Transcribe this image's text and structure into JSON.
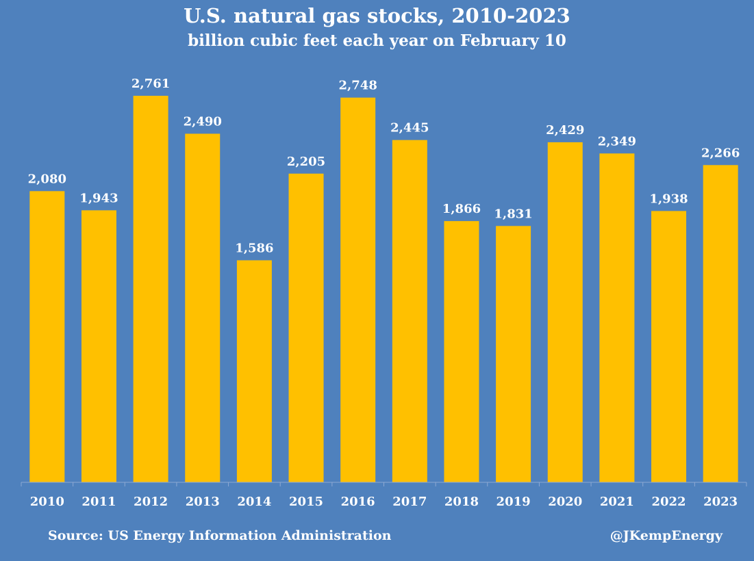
{
  "header": {
    "title": "U.S. natural gas stocks, 2010-2023",
    "subtitle": "billion cubic feet each year on February 10"
  },
  "footer": {
    "source": "Source: US Energy Information Administration",
    "handle": "@JKempEnergy"
  },
  "colors": {
    "background": "#4f81bd",
    "bar": "#ffc000",
    "text": "#ffffff",
    "axis": "#8ea9d3"
  },
  "chart_data": {
    "type": "bar",
    "title": "U.S. natural gas stocks, 2010-2023",
    "subtitle": "billion cubic feet each year on February 10",
    "categories": [
      "2010",
      "2011",
      "2012",
      "2013",
      "2014",
      "2015",
      "2016",
      "2017",
      "2018",
      "2019",
      "2020",
      "2021",
      "2022",
      "2023"
    ],
    "values": [
      2080,
      1943,
      2761,
      2490,
      1586,
      2205,
      2748,
      2445,
      1866,
      1831,
      2429,
      2349,
      1938,
      2266
    ],
    "value_labels": [
      "2,080",
      "1,943",
      "2,761",
      "2,490",
      "1,586",
      "2,205",
      "2,748",
      "2,445",
      "1,866",
      "1,831",
      "2,429",
      "2,349",
      "1,938",
      "2,266"
    ],
    "xlabel": "",
    "ylabel": "",
    "ylim": [
      0,
      2761
    ],
    "grid": false,
    "legend": "none"
  }
}
